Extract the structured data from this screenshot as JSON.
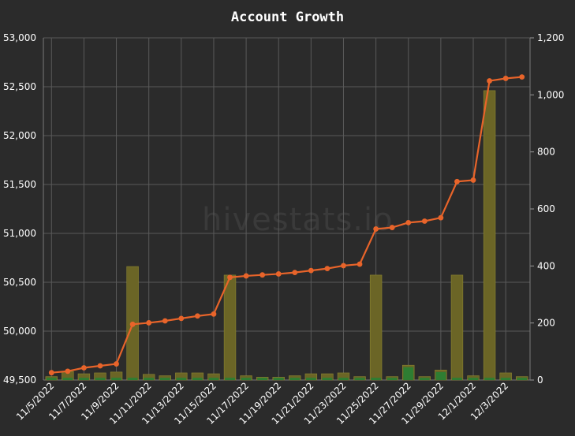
{
  "chart_data": {
    "type": "bar+line",
    "title": "Account Growth",
    "watermark": "hivestats.io",
    "x": [
      "11/5/2022",
      "11/6/2022",
      "11/7/2022",
      "11/8/2022",
      "11/9/2022",
      "11/10/2022",
      "11/11/2022",
      "11/12/2022",
      "11/13/2022",
      "11/14/2022",
      "11/15/2022",
      "11/16/2022",
      "11/17/2022",
      "11/18/2022",
      "11/19/2022",
      "11/20/2022",
      "11/21/2022",
      "11/22/2022",
      "11/23/2022",
      "11/24/2022",
      "11/25/2022",
      "11/26/2022",
      "11/27/2022",
      "11/28/2022",
      "11/29/2022",
      "11/30/2022",
      "12/1/2022",
      "12/2/2022",
      "12/3/2022",
      "12/4/2022"
    ],
    "x_tick_labels": [
      "11/5/2022",
      "11/7/2022",
      "11/9/2022",
      "11/11/2022",
      "11/13/2022",
      "11/15/2022",
      "11/17/2022",
      "11/19/2022",
      "11/21/2022",
      "11/23/2022",
      "11/25/2022",
      "11/27/2022",
      "11/29/2022",
      "12/1/2022",
      "12/3/2022"
    ],
    "left_axis": {
      "ylim": [
        49500,
        53000
      ],
      "ticks": [
        "49,500",
        "50,000",
        "50,500",
        "51,000",
        "51,500",
        "52,000",
        "52,500",
        "53,000"
      ]
    },
    "right_axis": {
      "ylim": [
        0,
        1200
      ],
      "ticks": [
        "0",
        "200",
        "400",
        "600",
        "800",
        "1,000",
        "1,200"
      ]
    },
    "series": [
      {
        "kind": "line",
        "axis": "left",
        "color": "#e8642a",
        "values": [
          49575,
          49590,
          49625,
          49645,
          49665,
          50070,
          50085,
          50105,
          50130,
          50155,
          50175,
          50550,
          50565,
          50575,
          50585,
          50600,
          50620,
          50640,
          50670,
          50685,
          51045,
          51060,
          51110,
          51125,
          51160,
          51530,
          51545,
          52560,
          52585,
          52600
        ]
      },
      {
        "kind": "bar",
        "axis": "right",
        "color": "#6b6526",
        "values": [
          12,
          30,
          22,
          25,
          28,
          398,
          20,
          15,
          25,
          25,
          22,
          368,
          15,
          10,
          10,
          15,
          22,
          22,
          25,
          12,
          368,
          12,
          52,
          12,
          35,
          368,
          15,
          1015,
          25,
          12
        ]
      },
      {
        "kind": "bar",
        "axis": "right",
        "color": "#2e7d32",
        "values": [
          8,
          8,
          8,
          8,
          8,
          8,
          8,
          8,
          8,
          8,
          8,
          8,
          8,
          8,
          8,
          8,
          8,
          8,
          8,
          8,
          8,
          8,
          45,
          8,
          28,
          8,
          8,
          8,
          8,
          8
        ]
      }
    ],
    "grid": true
  }
}
